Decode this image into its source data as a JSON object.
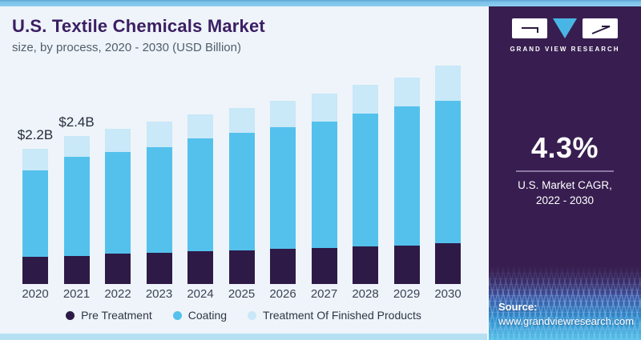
{
  "header": {
    "title": "U.S. Textile Chemicals Market",
    "subtitle": "size, by process, 2020 - 2030 (USD Billion)"
  },
  "panel": {
    "brand": "GRAND VIEW RESEARCH",
    "cagr_value": "4.3%",
    "cagr_label_line1": "U.S. Market CAGR,",
    "cagr_label_line2": "2022 - 2030",
    "source_label": "Source:",
    "source_url": "www.grandviewresearch.com",
    "colors": {
      "panel_bg": "#381e50",
      "logo_triangle": "#49b5e5"
    }
  },
  "chart_data": {
    "type": "bar",
    "stacked": true,
    "title": "U.S. Textile Chemicals Market size, by process, 2020 - 2030 (USD Billion)",
    "unit": "USD Billion",
    "categories": [
      "2020",
      "2021",
      "2022",
      "2023",
      "2024",
      "2025",
      "2026",
      "2027",
      "2028",
      "2029",
      "2030"
    ],
    "series": [
      {
        "name": "Pre Treatment",
        "color": "#2e1a47",
        "values": [
          0.44,
          0.46,
          0.49,
          0.51,
          0.53,
          0.55,
          0.57,
          0.58,
          0.61,
          0.63,
          0.66
        ]
      },
      {
        "name": "Coating",
        "color": "#54c1ec",
        "values": [
          1.41,
          1.6,
          1.66,
          1.71,
          1.83,
          1.9,
          1.98,
          2.06,
          2.16,
          2.25,
          2.32
        ]
      },
      {
        "name": "Treatment Of Finished Products",
        "color": "#c9e8f8",
        "values": [
          0.35,
          0.34,
          0.37,
          0.41,
          0.39,
          0.41,
          0.42,
          0.45,
          0.47,
          0.47,
          0.57
        ]
      }
    ],
    "totals": [
      2.2,
      2.4,
      2.52,
      2.63,
      2.75,
      2.86,
      2.97,
      3.09,
      3.24,
      3.35,
      3.55
    ],
    "value_labels": [
      {
        "index": 0,
        "text": "$2.2B"
      },
      {
        "index": 1,
        "text": "$2.4B"
      }
    ],
    "ylim": [
      0,
      3.7
    ],
    "gridlines": false,
    "y_axis_visible": false,
    "legend_position": "bottom"
  }
}
